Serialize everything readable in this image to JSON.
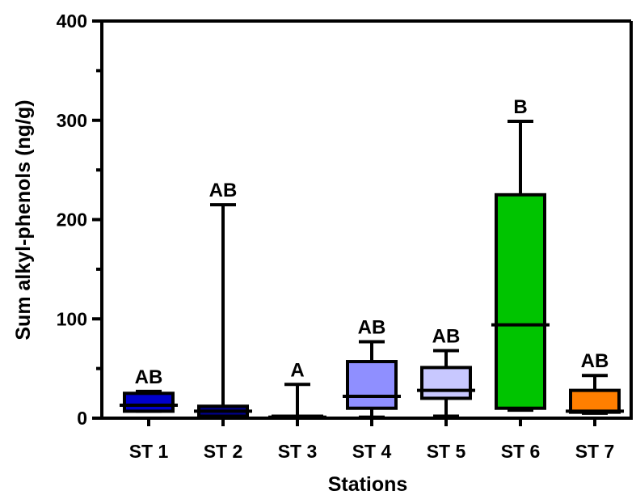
{
  "chart_data": {
    "type": "box",
    "xlabel": "Stations",
    "ylabel": "Sum alkyl-phenols (ng/g)",
    "ylim": [
      0,
      400
    ],
    "yticks_major": [
      0,
      100,
      200,
      300,
      400
    ],
    "yticks_major_labels": [
      "0",
      "100",
      "200",
      "300",
      "400"
    ],
    "yticks_minor": [
      50,
      150,
      250,
      350
    ],
    "grid": false,
    "legend": "none",
    "categories": [
      "ST 1",
      "ST 2",
      "ST 3",
      "ST 4",
      "ST 5",
      "ST 6",
      "ST 7"
    ],
    "boxes": [
      {
        "station": "ST 1",
        "min": 7,
        "q1": 7,
        "median": 13,
        "q3": 25,
        "max": 27,
        "letter": "AB",
        "color": "#0000cc"
      },
      {
        "station": "ST 2",
        "min": 1,
        "q1": 2,
        "median": 7,
        "q3": 12,
        "max": 215,
        "letter": "AB",
        "color": "#00008b"
      },
      {
        "station": "ST 3",
        "min": 0,
        "q1": 0,
        "median": 1,
        "q3": 2,
        "max": 34,
        "letter": "A",
        "color": "#000000"
      },
      {
        "station": "ST 4",
        "min": 1,
        "q1": 10,
        "median": 22,
        "q3": 57,
        "max": 77,
        "letter": "AB",
        "color": "#8f8fff"
      },
      {
        "station": "ST 5",
        "min": 2,
        "q1": 20,
        "median": 28,
        "q3": 51,
        "max": 68,
        "letter": "AB",
        "color": "#c8c8ff"
      },
      {
        "station": "ST 6",
        "min": 8,
        "q1": 10,
        "median": 94,
        "q3": 225,
        "max": 299,
        "letter": "B",
        "color": "#00c400"
      },
      {
        "station": "ST 7",
        "min": 5,
        "q1": 6,
        "median": 7,
        "q3": 28,
        "max": 43,
        "letter": "AB",
        "color": "#ff7f00"
      }
    ]
  }
}
